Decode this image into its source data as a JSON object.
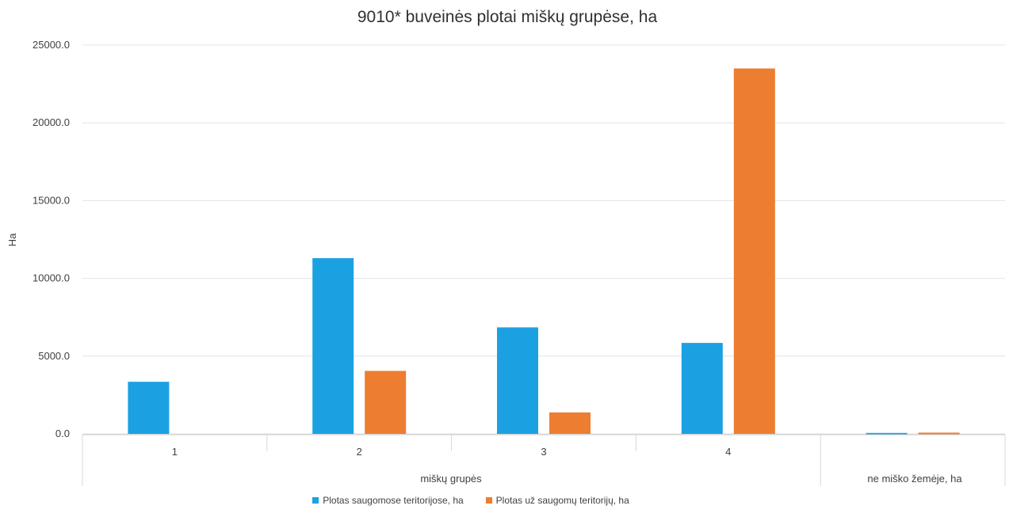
{
  "chart_data": {
    "type": "bar",
    "title": "9010* buveinės plotai miškų grupėse, ha",
    "ylabel": "Ha",
    "xlabel": "miškų grupės",
    "extra_group_label": "ne miško žemėje, ha",
    "categories": [
      "1",
      "2",
      "3",
      "4",
      ""
    ],
    "y_ticks": [
      "0.0",
      "5000.0",
      "10000.0",
      "15000.0",
      "20000.0",
      "25000.0"
    ],
    "ylim": [
      0,
      25000
    ],
    "grid": true,
    "legend_position": "bottom",
    "series": [
      {
        "name": "Plotas saugomose teritorijose, ha",
        "color": "#1ba1e2",
        "values": [
          3350,
          11300,
          6850,
          5850,
          60
        ]
      },
      {
        "name": "Plotas už saugomų teritorijų, ha",
        "color": "#ed7d31",
        "values": [
          0,
          4050,
          1380,
          23500,
          80
        ]
      }
    ]
  }
}
